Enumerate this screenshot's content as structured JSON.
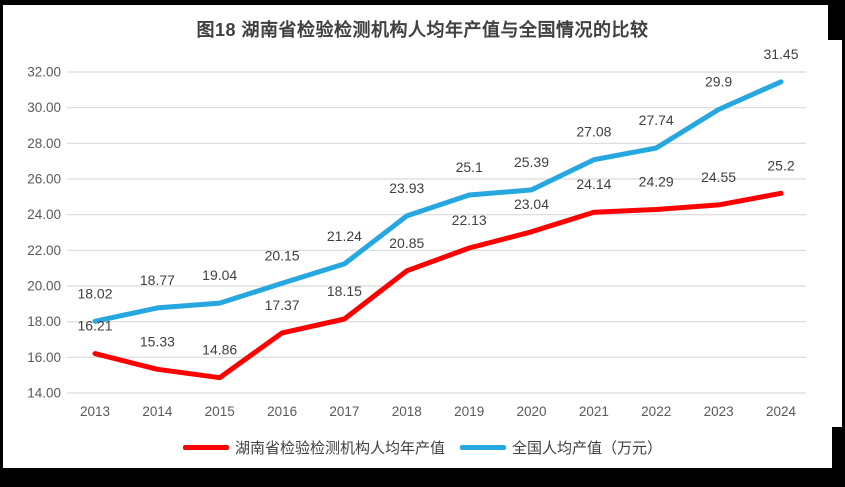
{
  "chart_data": {
    "type": "line",
    "title": "图18 湖南省检验检测机构人均年产值与全国情况的比较",
    "categories": [
      "2013",
      "2014",
      "2015",
      "2016",
      "2017",
      "2018",
      "2019",
      "2020",
      "2021",
      "2022",
      "2023",
      "2024"
    ],
    "series": [
      {
        "name": "湖南省检验检测机构人均年产值",
        "color": "#FE0000",
        "values": [
          16.21,
          15.33,
          14.86,
          17.37,
          18.15,
          20.85,
          22.13,
          23.04,
          24.14,
          24.29,
          24.55,
          25.2
        ],
        "labels": [
          "16.21",
          "15.33",
          "14.86",
          "17.37",
          "18.15",
          "20.85",
          "22.13",
          "23.04",
          "24.14",
          "24.29",
          "24.55",
          "25.2"
        ]
      },
      {
        "name": "全国人均产值（万元）",
        "color": "#27A7DF",
        "values": [
          18.02,
          18.77,
          19.04,
          20.15,
          21.24,
          23.93,
          25.1,
          25.39,
          27.08,
          27.74,
          29.9,
          31.45
        ],
        "labels": [
          "18.02",
          "18.77",
          "19.04",
          "20.15",
          "21.24",
          "23.93",
          "25.1",
          "25.39",
          "27.08",
          "27.74",
          "29.9",
          "31.45"
        ]
      }
    ],
    "xlabel": "",
    "ylabel": "",
    "ylim": [
      14,
      32
    ],
    "yticks": [
      "14.00",
      "16.00",
      "18.00",
      "20.00",
      "22.00",
      "24.00",
      "26.00",
      "28.00",
      "30.00",
      "32.00"
    ],
    "grid": "horizontal",
    "legend_position": "bottom",
    "colors": {
      "grid": "#D9D9D9",
      "axis_text": "#595959",
      "data_label": "#404040",
      "title_text": "#404040",
      "frame": "#000000"
    }
  }
}
